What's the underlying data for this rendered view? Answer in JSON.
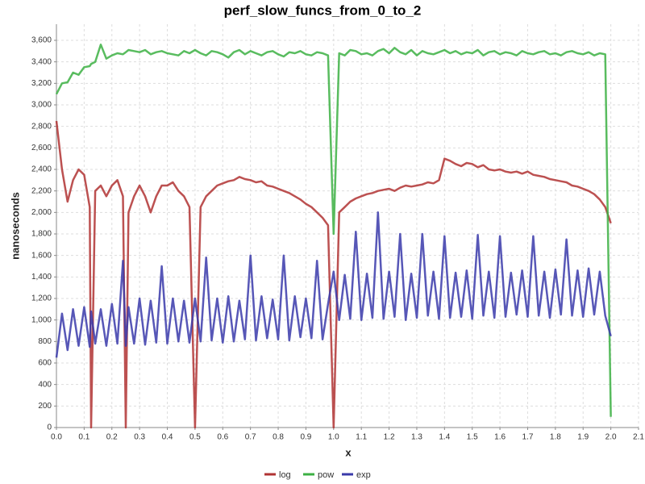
{
  "chart_data": {
    "type": "line",
    "title": "perf_slow_funcs_from_0_to_2",
    "xlabel": "x",
    "ylabel": "nanoseconds",
    "x": [
      0,
      0.02,
      0.04,
      0.06,
      0.08,
      0.1,
      0.12,
      0.125,
      0.14,
      0.16,
      0.18,
      0.2,
      0.22,
      0.24,
      0.25,
      0.26,
      0.28,
      0.3,
      0.32,
      0.34,
      0.36,
      0.38,
      0.4,
      0.42,
      0.44,
      0.46,
      0.48,
      0.5,
      0.52,
      0.54,
      0.56,
      0.58,
      0.6,
      0.62,
      0.64,
      0.66,
      0.68,
      0.7,
      0.72,
      0.74,
      0.76,
      0.78,
      0.8,
      0.82,
      0.84,
      0.86,
      0.88,
      0.9,
      0.92,
      0.94,
      0.96,
      0.98,
      1.0,
      1.02,
      1.04,
      1.06,
      1.08,
      1.1,
      1.12,
      1.14,
      1.16,
      1.18,
      1.2,
      1.22,
      1.24,
      1.26,
      1.28,
      1.3,
      1.32,
      1.34,
      1.36,
      1.38,
      1.4,
      1.42,
      1.44,
      1.46,
      1.48,
      1.5,
      1.52,
      1.54,
      1.56,
      1.58,
      1.6,
      1.62,
      1.64,
      1.66,
      1.68,
      1.7,
      1.72,
      1.74,
      1.76,
      1.78,
      1.8,
      1.82,
      1.84,
      1.86,
      1.88,
      1.9,
      1.92,
      1.94,
      1.96,
      1.98,
      2.0
    ],
    "series": [
      {
        "name": "log",
        "color": "#b03333",
        "values": [
          2850,
          2400,
          2100,
          2300,
          2400,
          2350,
          2050,
          0,
          2200,
          2250,
          2150,
          2250,
          2300,
          2150,
          0,
          2000,
          2150,
          2250,
          2150,
          2000,
          2150,
          2250,
          2250,
          2280,
          2200,
          2150,
          2050,
          0,
          2050,
          2150,
          2200,
          2250,
          2270,
          2290,
          2300,
          2330,
          2310,
          2300,
          2280,
          2290,
          2250,
          2240,
          2220,
          2200,
          2180,
          2150,
          2120,
          2080,
          2050,
          2000,
          1950,
          1880,
          0,
          2000,
          2050,
          2100,
          2130,
          2150,
          2170,
          2180,
          2200,
          2210,
          2220,
          2200,
          2230,
          2250,
          2240,
          2250,
          2260,
          2280,
          2270,
          2300,
          2500,
          2480,
          2450,
          2430,
          2460,
          2450,
          2420,
          2440,
          2400,
          2390,
          2400,
          2380,
          2370,
          2380,
          2360,
          2380,
          2350,
          2340,
          2330,
          2310,
          2300,
          2290,
          2280,
          2250,
          2240,
          2220,
          2200,
          2170,
          2120,
          2050,
          1900
        ]
      },
      {
        "name": "pow",
        "color": "#3cb043",
        "values": [
          3100,
          3200,
          3210,
          3300,
          3280,
          3350,
          3360,
          3380,
          3400,
          3560,
          3430,
          3460,
          3480,
          3470,
          3490,
          3510,
          3500,
          3490,
          3510,
          3470,
          3490,
          3500,
          3480,
          3470,
          3460,
          3500,
          3480,
          3510,
          3480,
          3460,
          3500,
          3490,
          3470,
          3440,
          3490,
          3510,
          3470,
          3500,
          3480,
          3460,
          3490,
          3500,
          3470,
          3450,
          3490,
          3480,
          3500,
          3470,
          3460,
          3490,
          3480,
          3460,
          1800,
          3480,
          3460,
          3510,
          3500,
          3470,
          3480,
          3460,
          3500,
          3520,
          3480,
          3530,
          3490,
          3470,
          3510,
          3460,
          3500,
          3480,
          3470,
          3490,
          3510,
          3480,
          3500,
          3470,
          3490,
          3480,
          3510,
          3460,
          3490,
          3500,
          3470,
          3490,
          3480,
          3460,
          3500,
          3480,
          3470,
          3490,
          3500,
          3470,
          3480,
          3460,
          3490,
          3500,
          3480,
          3470,
          3490,
          3460,
          3480,
          3470,
          100
        ]
      },
      {
        "name": "exp",
        "color": "#3a3aaa",
        "values": [
          650,
          1060,
          720,
          1100,
          760,
          1120,
          750,
          1080,
          780,
          1100,
          760,
          1150,
          780,
          1550,
          760,
          1120,
          780,
          1200,
          770,
          1180,
          790,
          1500,
          780,
          1200,
          800,
          1180,
          790,
          1200,
          800,
          1580,
          810,
          1200,
          790,
          1220,
          800,
          1180,
          820,
          1600,
          810,
          1220,
          830,
          1190,
          820,
          1600,
          810,
          1220,
          840,
          1200,
          830,
          1550,
          820,
          1150,
          1450,
          1000,
          1420,
          1010,
          1820,
          1000,
          1430,
          1020,
          2000,
          1010,
          1450,
          1030,
          1800,
          1000,
          1430,
          1020,
          1800,
          1040,
          1450,
          1010,
          1780,
          1020,
          1440,
          1030,
          1460,
          1010,
          1790,
          1040,
          1450,
          1020,
          1780,
          1030,
          1440,
          1050,
          1460,
          1030,
          1780,
          1040,
          1450,
          1020,
          1470,
          1050,
          1750,
          1040,
          1460,
          1030,
          1480,
          1050,
          1450,
          1040,
          850
        ]
      }
    ],
    "xlim": [
      0,
      2.1
    ],
    "xticks": [
      {
        "value": 0,
        "label": "0.0"
      },
      0.1,
      0.2,
      0.3,
      0.4,
      0.5,
      0.6,
      0.7,
      0.8,
      0.9,
      {
        "value": 1,
        "label": "1.0"
      },
      1.1,
      1.2,
      1.3,
      1.4,
      1.5,
      1.6,
      1.7,
      1.8,
      1.9,
      {
        "value": 2,
        "label": "2.0"
      },
      2.1
    ],
    "ylim": [
      0,
      3750
    ],
    "yticks": [
      0,
      200,
      400,
      600,
      800,
      {
        "value": 1000,
        "label": "1,000"
      },
      {
        "value": 1200,
        "label": "1,200"
      },
      {
        "value": 1400,
        "label": "1,400"
      },
      {
        "value": 1600,
        "label": "1,600"
      },
      {
        "value": 1800,
        "label": "1,800"
      },
      {
        "value": 2000,
        "label": "2,000"
      },
      {
        "value": 2200,
        "label": "2,200"
      },
      {
        "value": 2400,
        "label": "2,400"
      },
      {
        "value": 2600,
        "label": "2,600"
      },
      {
        "value": 2800,
        "label": "2,800"
      },
      {
        "value": 3000,
        "label": "3,000"
      },
      {
        "value": 3200,
        "label": "3,200"
      },
      {
        "value": 3400,
        "label": "3,400"
      },
      {
        "value": 3600,
        "label": "3,600"
      }
    ],
    "grid": true,
    "legend": "bottom"
  }
}
